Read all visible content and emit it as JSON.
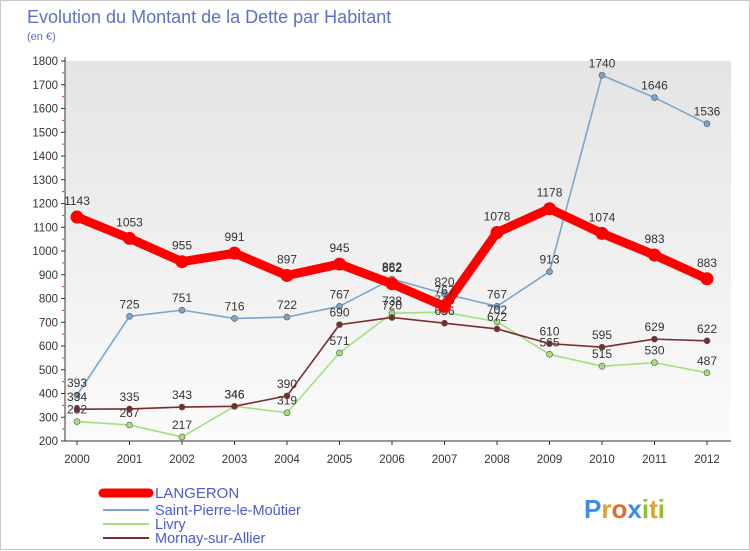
{
  "chart_data": {
    "type": "line",
    "title": "Evolution du Montant de la Dette par Habitant",
    "subtitle": "(en €)",
    "x": [
      "2000",
      "2001",
      "2002",
      "2003",
      "2004",
      "2005",
      "2006",
      "2007",
      "2008",
      "2009",
      "2010",
      "2011",
      "2012"
    ],
    "ylim": [
      200,
      1800
    ],
    "yticks": [
      200,
      300,
      400,
      500,
      600,
      700,
      800,
      900,
      1000,
      1100,
      1200,
      1300,
      1400,
      1500,
      1600,
      1700,
      1800
    ],
    "grid": false,
    "legend_position": "bottom-left",
    "series": [
      {
        "name": "LANGERON",
        "color": "#ff0000",
        "values": [
          1143,
          1053,
          955,
          991,
          897,
          945,
          862,
          767,
          1078,
          1178,
          1074,
          983,
          883
        ]
      },
      {
        "name": "Saint-Pierre-le-Moûtier",
        "color": "#7aa6cc",
        "values": [
          393,
          725,
          751,
          716,
          722,
          767,
          882,
          820,
          767,
          913,
          1740,
          1646,
          1536
        ]
      },
      {
        "name": "Livry",
        "color": "#a3e07a",
        "values": [
          282,
          267,
          217,
          346,
          319,
          571,
          738,
          743,
          702,
          565,
          515,
          530,
          487
        ]
      },
      {
        "name": "Mornay-sur-Allier",
        "color": "#7a2c2c",
        "values": [
          334,
          335,
          343,
          346,
          390,
          690,
          720,
          696,
          672,
          610,
          595,
          629,
          622
        ]
      }
    ]
  },
  "logo": {
    "text": "Proxiti"
  }
}
